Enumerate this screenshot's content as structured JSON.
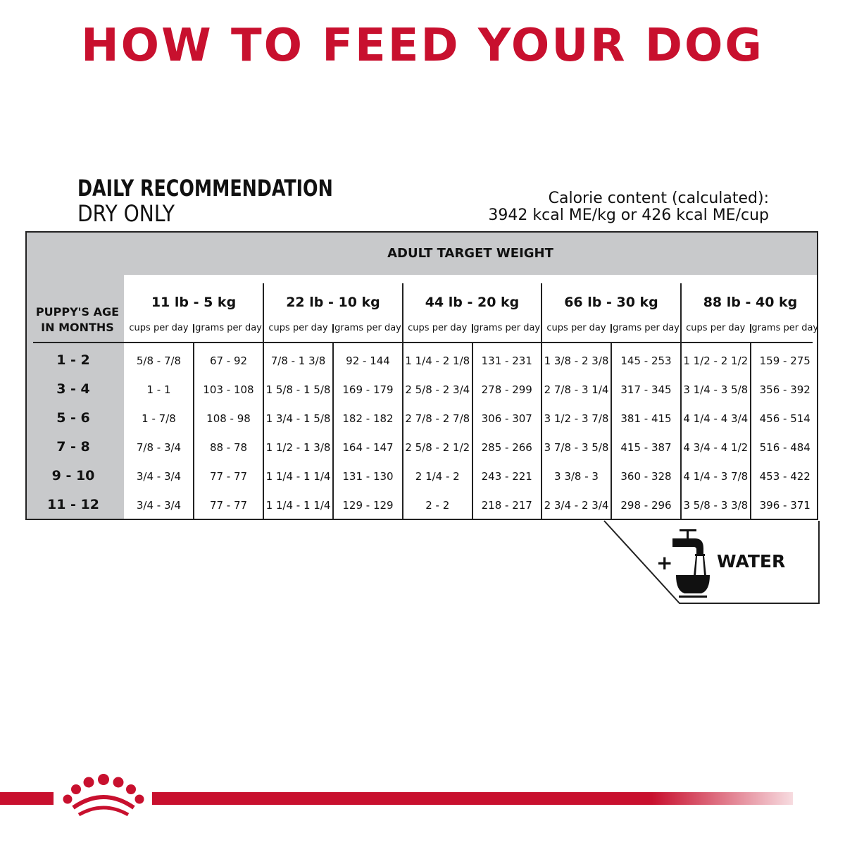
{
  "title": "HOW TO FEED YOUR DOG",
  "recommendation": {
    "line1": "DAILY RECOMMENDATION",
    "line2": "DRY ONLY"
  },
  "calorie": {
    "line1": "Calorie content (calculated):",
    "line2": "3942 kcal ME/kg or 426 kcal ME/cup"
  },
  "table": {
    "header": "ADULT TARGET WEIGHT",
    "age_header": [
      "PUPPY'S AGE",
      "IN MONTHS"
    ],
    "sub_headers": [
      "cups per day",
      "grams per day"
    ],
    "weights": [
      "11 lb - 5 kg",
      "22 lb - 10 kg",
      "44 lb - 20 kg",
      "66 lb - 30 kg",
      "88 lb - 40 kg"
    ],
    "rows": [
      {
        "age": "1 - 2",
        "values": [
          "5/8 - 7/8",
          "67 - 92",
          "7/8 - 1 3/8",
          "92 - 144",
          "1 1/4 - 2 1/8",
          "131 - 231",
          "1 3/8 - 2 3/8",
          "145 - 253",
          "1 1/2 - 2 1/2",
          "159 - 275"
        ]
      },
      {
        "age": "3 - 4",
        "values": [
          "1 - 1",
          "103 - 108",
          "1 5/8 - 1 5/8",
          "169 - 179",
          "2 5/8 - 2 3/4",
          "278 - 299",
          "2 7/8 - 3 1/4",
          "317 - 345",
          "3 1/4 - 3 5/8",
          "356 - 392"
        ]
      },
      {
        "age": "5 - 6",
        "values": [
          "1 - 7/8",
          "108 - 98",
          "1 3/4 - 1 5/8",
          "182 - 182",
          "2 7/8 - 2 7/8",
          "306 - 307",
          "3 1/2 - 3 7/8",
          "381 - 415",
          "4 1/4 - 4 3/4",
          "456 - 514"
        ]
      },
      {
        "age": "7 - 8",
        "values": [
          "7/8 - 3/4",
          "88 - 78",
          "1 1/2 - 1 3/8",
          "164 - 147",
          "2 5/8 - 2 1/2",
          "285 - 266",
          "3 7/8 - 3 5/8",
          "415 - 387",
          "4 3/4 - 4 1/2",
          "516 - 484"
        ]
      },
      {
        "age": "9 - 10",
        "values": [
          "3/4 - 3/4",
          "77 - 77",
          "1 1/4 - 1 1/4",
          "131 - 130",
          "2 1/4 - 2",
          "243 - 221",
          "3 3/8 - 3",
          "360 - 328",
          "4 1/4 - 3 7/8",
          "453 - 422"
        ]
      },
      {
        "age": "11 - 12",
        "values": [
          "3/4 - 3/4",
          "77 - 77",
          "1 1/4 - 1 1/4",
          "129 - 129",
          "2 - 2",
          "218 - 217",
          "2 3/4 - 2 3/4",
          "298 - 296",
          "3 5/8 - 3 3/8",
          "396 - 371"
        ]
      }
    ]
  },
  "water": {
    "plus": "+",
    "label": "WATER",
    "icon": "faucet-bowl-icon"
  },
  "colors": {
    "brand_red": "#c8102e",
    "header_gray": "#c8c9cb"
  },
  "logo": {
    "icon": "royal-canin-crown-logo"
  }
}
